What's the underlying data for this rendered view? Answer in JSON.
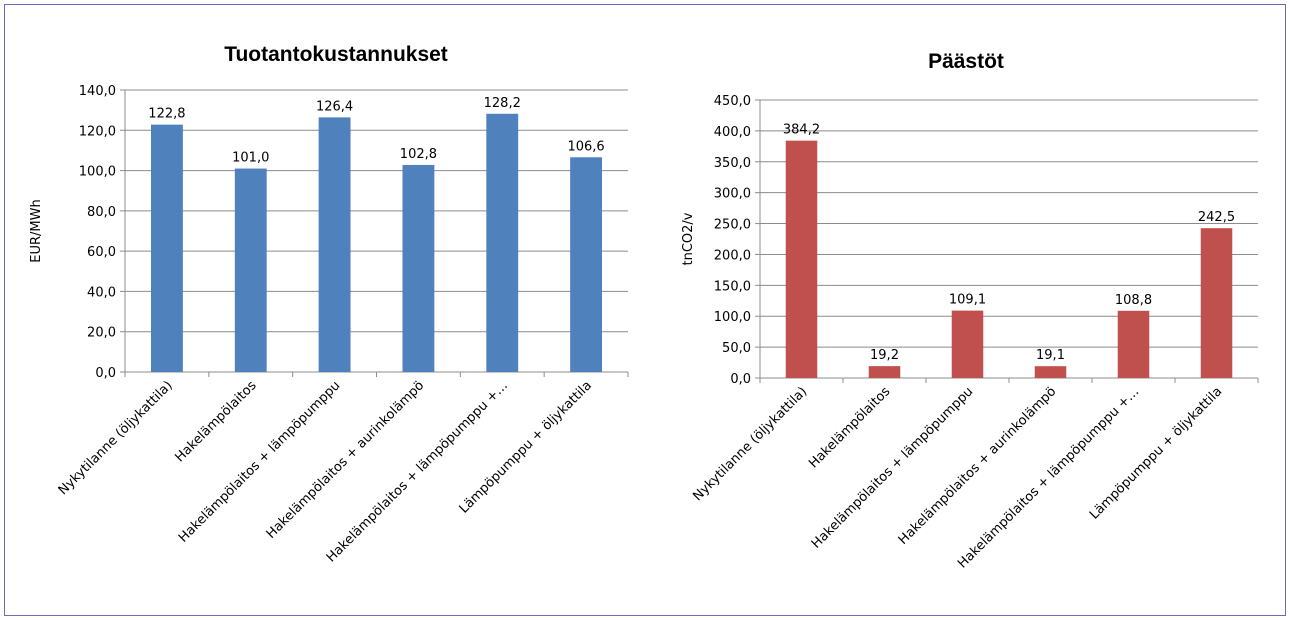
{
  "chart_data": [
    {
      "type": "bar",
      "title": "Tuotantokustannukset",
      "xlabel": "",
      "ylabel": "EUR/MWh",
      "ylim": [
        0,
        140
      ],
      "yticks": [
        "0,0",
        "20,0",
        "40,0",
        "60,0",
        "80,0",
        "100,0",
        "120,0",
        "140,0"
      ],
      "grid": true,
      "categories": [
        "Nykytilanne (öljykattila)",
        "Hakelämpölaitos",
        "Hakelämpölaitos + lämpöpumppu",
        "Hakelämpölaitos + aurinkolämpö",
        "Hakelämpölaitos + lämpöpumppu +…",
        "Lämpöpumppu + öljykattila"
      ],
      "values": [
        122.8,
        101.0,
        126.4,
        102.8,
        128.2,
        106.6
      ],
      "data_labels": [
        "122,8",
        "101,0",
        "126,4",
        "102,8",
        "128,2",
        "106,6"
      ],
      "color": "#4f81bd"
    },
    {
      "type": "bar",
      "title": "Päästöt",
      "xlabel": "",
      "ylabel": "tnCO2/v",
      "ylim": [
        0,
        450
      ],
      "yticks": [
        "0,0",
        "50,0",
        "100,0",
        "150,0",
        "200,0",
        "250,0",
        "300,0",
        "350,0",
        "400,0",
        "450,0"
      ],
      "grid": true,
      "categories": [
        "Nykytilanne (öljykattila)",
        "Hakelämpölaitos",
        "Hakelämpölaitos + lämpöpumppu",
        "Hakelämpölaitos + aurinkolämpö",
        "Hakelämpölaitos + lämpöpumppu +…",
        "Lämpöpumppu + öljykattila"
      ],
      "values": [
        384.2,
        19.2,
        109.1,
        19.1,
        108.8,
        242.5
      ],
      "data_labels": [
        "384,2",
        "19,2",
        "109,1",
        "19,1",
        "108,8",
        "242,5"
      ],
      "color": "#c0504d"
    }
  ]
}
